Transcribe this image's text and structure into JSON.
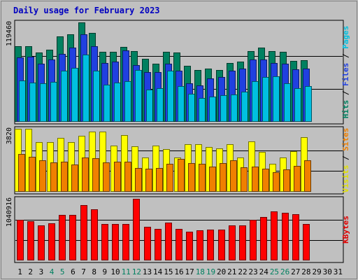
{
  "chart_data": {
    "type": "bar",
    "title": "Daily usage for February 2023",
    "days": [
      "1",
      "2",
      "3",
      "4",
      "5",
      "6",
      "7",
      "8",
      "9",
      "10",
      "11",
      "12",
      "13",
      "14",
      "15",
      "16",
      "17",
      "18",
      "19",
      "20",
      "21",
      "22",
      "23",
      "24",
      "25",
      "26",
      "27",
      "28",
      "29",
      "30",
      "31"
    ],
    "weekend_days": [
      "4",
      "5",
      "11",
      "12",
      "18",
      "19",
      "25",
      "26"
    ],
    "panels": [
      {
        "id": "top",
        "max_label": "119460",
        "ymax": 119460,
        "right_labels": [
          "Pages",
          "Files",
          "Hits"
        ],
        "right_colors": [
          "#00c0e0",
          "#2040e0",
          "#008060"
        ],
        "series": [
          {
            "name": "Hits",
            "color": "#008060",
            "values": [
              91000,
              91000,
              83000,
              87000,
              103000,
              105000,
              119460,
              107000,
              84000,
              84000,
              90000,
              85000,
              76000,
              70000,
              84000,
              83000,
              67000,
              62000,
              64000,
              62000,
              71000,
              72000,
              85000,
              89000,
              85000,
              84000,
              73000,
              74000,
              0,
              0,
              0
            ]
          },
          {
            "name": "Files",
            "color": "#2040e0",
            "values": [
              77000,
              78000,
              70000,
              75000,
              82000,
              89000,
              105000,
              91000,
              71000,
              72000,
              86000,
              68000,
              60000,
              60000,
              70000,
              61000,
              46000,
              44000,
              52000,
              54000,
              61000,
              64000,
              75000,
              75000,
              71000,
              70000,
              63000,
              64000,
              0,
              0,
              0
            ]
          },
          {
            "name": "Pages",
            "color": "#00c0e0",
            "values": [
              50000,
              47000,
              46000,
              48000,
              61000,
              65000,
              81000,
              61000,
              45000,
              47000,
              49000,
              62000,
              39000,
              40000,
              61000,
              43000,
              34000,
              29000,
              30000,
              32000,
              33000,
              36000,
              49000,
              54000,
              55000,
              46000,
              40000,
              43000,
              0,
              0,
              0
            ]
          }
        ]
      },
      {
        "id": "mid",
        "max_label": "3820",
        "ymax": 3820,
        "right_labels": [
          "Sites",
          "Visits"
        ],
        "right_colors": [
          "#f08000",
          "#e0e000"
        ],
        "series": [
          {
            "name": "Visits",
            "color": "#ffff00",
            "values": [
              3820,
              3820,
              3010,
              3010,
              3270,
              3000,
              3380,
              3650,
              3650,
              2790,
              3430,
              2780,
              2090,
              2800,
              2600,
              2090,
              2880,
              2880,
              2710,
              2640,
              2880,
              2090,
              3050,
              2430,
              1680,
              2090,
              2460,
              3330,
              0,
              0,
              0
            ]
          },
          {
            "name": "Sites",
            "color": "#f08000",
            "values": [
              2290,
              2110,
              1930,
              1800,
              1840,
              1660,
              2070,
              2020,
              1800,
              1810,
              1840,
              1460,
              1390,
              1450,
              1710,
              2010,
              1750,
              1710,
              1530,
              1740,
              1920,
              1500,
              1520,
              1410,
              1190,
              1360,
              1560,
              1910,
              0,
              0,
              0
            ]
          }
        ]
      },
      {
        "id": "bot",
        "max_label": "1040916",
        "ymax": 1040916,
        "right_labels": [
          "KBytes"
        ],
        "right_colors": [
          "#e00000"
        ],
        "series": [
          {
            "name": "KBytes",
            "color": "#ff0000",
            "values": [
              690000,
              660000,
              590000,
              630000,
              770000,
              770000,
              930000,
              860000,
              620000,
              610000,
              620000,
              1040916,
              570000,
              530000,
              640000,
              530000,
              480000,
              510000,
              520000,
              520000,
              590000,
              590000,
              690000,
              730000,
              830000,
              800000,
              780000,
              620000,
              0,
              0,
              0
            ]
          }
        ]
      }
    ]
  }
}
